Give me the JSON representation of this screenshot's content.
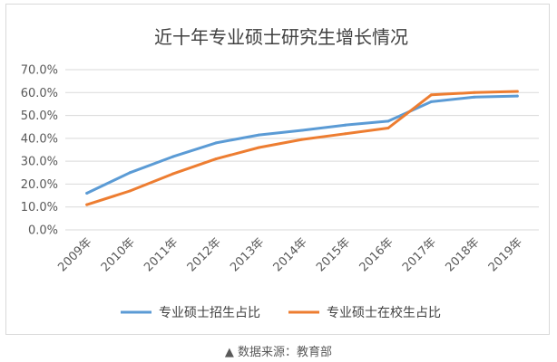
{
  "chart_data": {
    "type": "line",
    "title": "近十年专业硕士研究生增长情况",
    "categories": [
      "2009年",
      "2010年",
      "2011年",
      "2012年",
      "2013年",
      "2014年",
      "2015年",
      "2016年",
      "2017年",
      "2018年",
      "2019年"
    ],
    "series": [
      {
        "name": "专业硕士招生占比",
        "color": "#5b9bd5",
        "values": [
          16.0,
          25.0,
          32.0,
          38.0,
          41.5,
          43.5,
          45.8,
          47.5,
          56.0,
          58.0,
          58.5
        ]
      },
      {
        "name": "专业硕士在校生占比",
        "color": "#ed7d31",
        "values": [
          11.0,
          17.0,
          24.5,
          31.0,
          36.0,
          39.5,
          42.0,
          44.5,
          59.0,
          60.0,
          60.5
        ]
      }
    ],
    "ylim": [
      0,
      70
    ],
    "yticks": [
      "0.0%",
      "10.0%",
      "20.0%",
      "30.0%",
      "40.0%",
      "50.0%",
      "60.0%",
      "70.0%"
    ],
    "grid": true,
    "legend_position": "bottom"
  },
  "source_note": "▲ 数据来源：教育部"
}
